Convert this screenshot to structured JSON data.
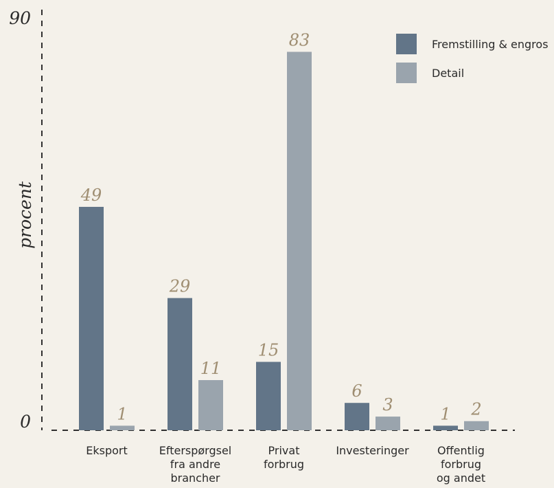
{
  "chart_data": {
    "type": "bar",
    "title": "",
    "xlabel": "",
    "ylabel": "procent",
    "ylim": [
      0,
      90
    ],
    "y_ticks": [
      "0",
      "90"
    ],
    "categories": [
      [
        "Eksport"
      ],
      [
        "Efterspørgsel",
        "fra andre",
        "brancher"
      ],
      [
        "Privat",
        "forbrug"
      ],
      [
        "Investeringer"
      ],
      [
        "Offentlig",
        "forbrug",
        "og andet"
      ]
    ],
    "series": [
      {
        "name": "Fremstilling & engros",
        "color": "#627588",
        "values": [
          49,
          29,
          15,
          6,
          1
        ]
      },
      {
        "name": "Detail",
        "color": "#9aa4ad",
        "values": [
          1,
          11,
          83,
          3,
          2
        ]
      }
    ],
    "legend_position": "top-right",
    "value_label_color": "#9f8e72",
    "axis_color": "#2f2f2f",
    "text_color": "#2a2a2a"
  }
}
